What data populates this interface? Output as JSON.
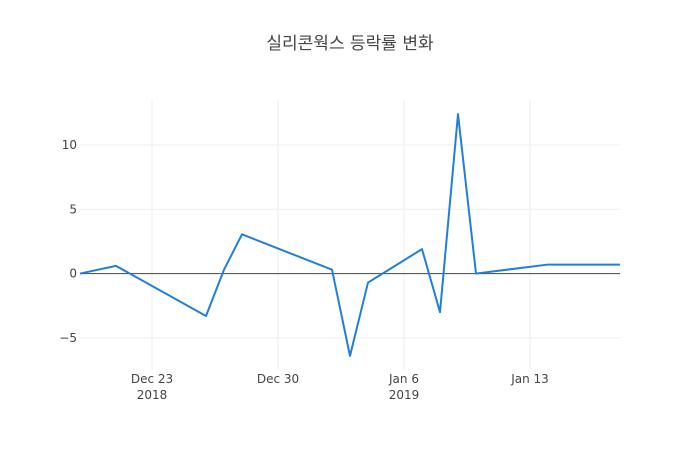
{
  "chart_data": {
    "type": "line",
    "title": "실리콘웍스 등락률 변화",
    "xlabel": "",
    "ylabel": "",
    "x_range": [
      "2018-12-19",
      "2019-01-18"
    ],
    "ylim": [
      -7.5,
      13.5
    ],
    "grid": true,
    "legend": "none",
    "line_color": "#1f7fdc",
    "zero_line_color": "#444444",
    "grid_color": "#eeeeee",
    "y_ticks": [
      {
        "value": -5,
        "label": "−5"
      },
      {
        "value": 0,
        "label": "0"
      },
      {
        "value": 5,
        "label": "5"
      },
      {
        "value": 10,
        "label": "10"
      }
    ],
    "x_ticks": [
      {
        "date": "2018-12-23",
        "label": "Dec 23",
        "sublabel": "2018"
      },
      {
        "date": "2018-12-30",
        "label": "Dec 30",
        "sublabel": ""
      },
      {
        "date": "2019-01-06",
        "label": "Jan 6",
        "sublabel": "2019"
      },
      {
        "date": "2019-01-13",
        "label": "Jan 13",
        "sublabel": ""
      }
    ],
    "series": [
      {
        "points": [
          {
            "x": "2018-12-19",
            "y": 0.0
          },
          {
            "x": "2018-12-21",
            "y": 0.6
          },
          {
            "x": "2018-12-26",
            "y": -3.3
          },
          {
            "x": "2018-12-27",
            "y": 0.3
          },
          {
            "x": "2018-12-28",
            "y": 3.05
          },
          {
            "x": "2019-01-02",
            "y": 0.3
          },
          {
            "x": "2019-01-03",
            "y": -6.4
          },
          {
            "x": "2019-01-04",
            "y": -0.7
          },
          {
            "x": "2019-01-07",
            "y": 1.9
          },
          {
            "x": "2019-01-08",
            "y": -3.0
          },
          {
            "x": "2019-01-09",
            "y": 12.4
          },
          {
            "x": "2019-01-10",
            "y": 0.0
          },
          {
            "x": "2019-01-14",
            "y": 0.7
          },
          {
            "x": "2019-01-18",
            "y": 0.7
          }
        ]
      }
    ]
  }
}
